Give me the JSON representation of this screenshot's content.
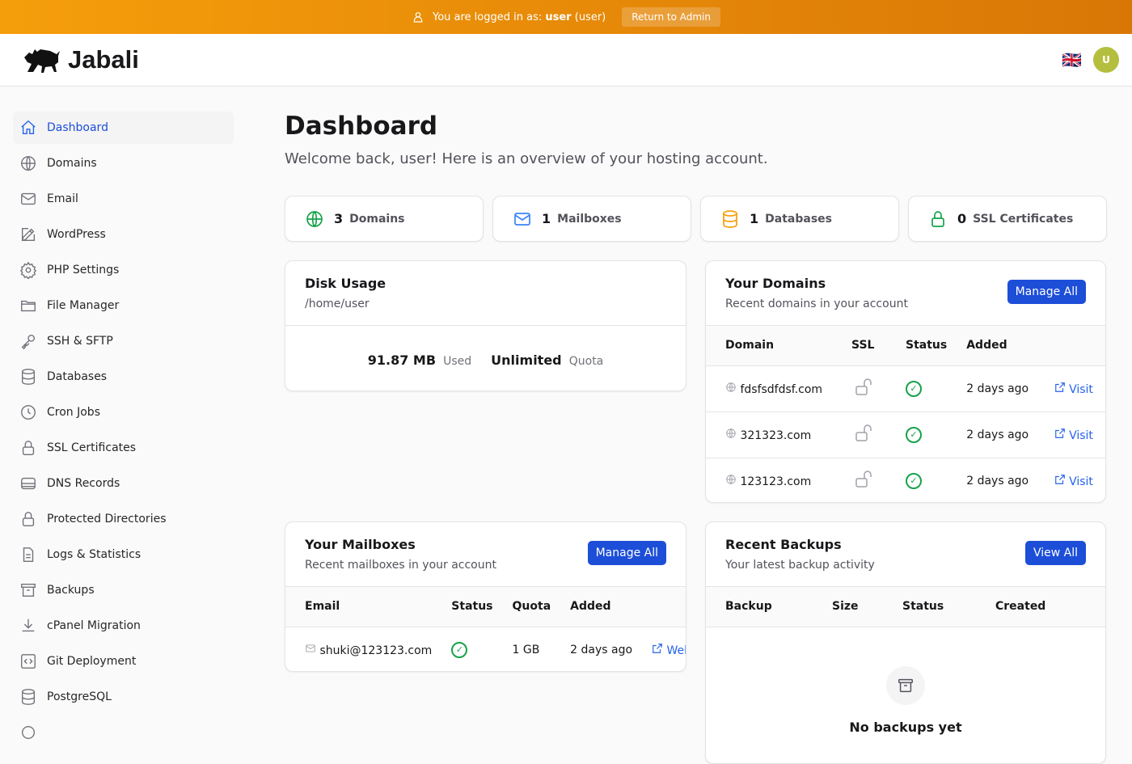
{
  "impersonation": {
    "prefix": "You are logged in as:",
    "user": "user",
    "role": "(user)",
    "return_label": "Return to Admin"
  },
  "brand": {
    "name": "Jabali"
  },
  "header": {
    "language_flag": "🇬🇧",
    "avatar_initial": "U",
    "avatar_color": "#b5bf3f"
  },
  "sidebar": {
    "items": [
      {
        "label": "Dashboard",
        "icon": "home-icon",
        "active": true
      },
      {
        "label": "Domains",
        "icon": "globe-icon"
      },
      {
        "label": "Email",
        "icon": "envelope-icon"
      },
      {
        "label": "WordPress",
        "icon": "pencil-icon"
      },
      {
        "label": "PHP Settings",
        "icon": "gear-icon"
      },
      {
        "label": "File Manager",
        "icon": "folder-icon"
      },
      {
        "label": "SSH & SFTP",
        "icon": "key-icon"
      },
      {
        "label": "Databases",
        "icon": "database-icon"
      },
      {
        "label": "Cron Jobs",
        "icon": "clock-icon"
      },
      {
        "label": "SSL Certificates",
        "icon": "lock-icon"
      },
      {
        "label": "DNS Records",
        "icon": "server-icon"
      },
      {
        "label": "Protected Directories",
        "icon": "lock-icon"
      },
      {
        "label": "Logs & Statistics",
        "icon": "document-icon"
      },
      {
        "label": "Backups",
        "icon": "archive-icon"
      },
      {
        "label": "cPanel Migration",
        "icon": "download-icon"
      },
      {
        "label": "Git Deployment",
        "icon": "code-icon"
      },
      {
        "label": "PostgreSQL",
        "icon": "database-icon"
      },
      {
        "label": "",
        "icon": "more-icon"
      }
    ]
  },
  "page": {
    "title": "Dashboard",
    "subtitle": "Welcome back, user! Here is an overview of your hosting account."
  },
  "stats": [
    {
      "value": "3",
      "label": "Domains",
      "icon": "globe-icon",
      "color": "#16a34a"
    },
    {
      "value": "1",
      "label": "Mailboxes",
      "icon": "envelope-icon",
      "color": "#3b82f6"
    },
    {
      "value": "1",
      "label": "Databases",
      "icon": "database-icon",
      "color": "#f59e0b"
    },
    {
      "value": "0",
      "label": "SSL Certificates",
      "icon": "lock-icon",
      "color": "#16a34a"
    }
  ],
  "disk": {
    "title": "Disk Usage",
    "path": "/home/user",
    "used": "91.87 MB",
    "used_label": "Used",
    "quota": "Unlimited",
    "quota_label": "Quota"
  },
  "domains": {
    "title": "Your Domains",
    "subtitle": "Recent domains in your account",
    "button": "Manage All",
    "columns": [
      "Domain",
      "SSL",
      "Status",
      "Added"
    ],
    "rows": [
      {
        "domain": "fdsfsdfdsf.com",
        "added": "2 days ago",
        "action": "Visit"
      },
      {
        "domain": "321323.com",
        "added": "2 days ago",
        "action": "Visit"
      },
      {
        "domain": "123123.com",
        "added": "2 days ago",
        "action": "Visit"
      }
    ]
  },
  "mailboxes": {
    "title": "Your Mailboxes",
    "subtitle": "Recent mailboxes in your account",
    "button": "Manage All",
    "columns": [
      "Email",
      "Status",
      "Quota",
      "Added"
    ],
    "rows": [
      {
        "email": "shuki@123123.com",
        "quota": "1 GB",
        "added": "2 days ago",
        "action": "Webmail"
      }
    ]
  },
  "backups": {
    "title": "Recent Backups",
    "subtitle": "Your latest backup activity",
    "button": "View All",
    "columns": [
      "Backup",
      "Size",
      "Status",
      "Created"
    ],
    "empty": "No backups yet"
  }
}
